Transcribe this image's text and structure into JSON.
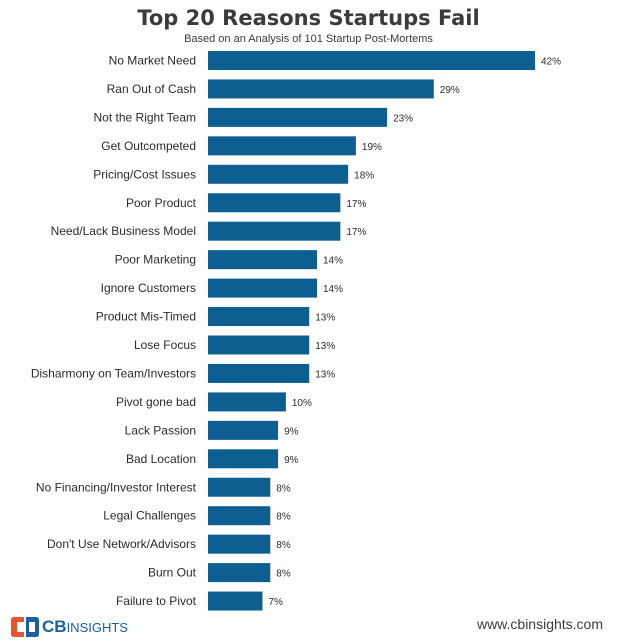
{
  "chart_data": {
    "type": "bar",
    "orientation": "horizontal",
    "title": "Top 20 Reasons Startups Fail",
    "subtitle": "Based on an Analysis of 101 Startup Post-Mortems",
    "categories": [
      "No Market Need",
      "Ran Out of Cash",
      "Not the Right Team",
      "Get Outcompeted",
      "Pricing/Cost Issues",
      "Poor Product",
      "Need/Lack Business Model",
      "Poor Marketing",
      "Ignore Customers",
      "Product Mis-Timed",
      "Lose Focus",
      "Disharmony on Team/Investors",
      "Pivot gone bad",
      "Lack Passion",
      "Bad Location",
      "No Financing/Investor Interest",
      "Legal Challenges",
      "Don't Use Network/Advisors",
      "Burn Out",
      "Failure to Pivot"
    ],
    "values": [
      42,
      29,
      23,
      19,
      18,
      17,
      17,
      14,
      14,
      13,
      13,
      13,
      10,
      9,
      9,
      8,
      8,
      8,
      8,
      7
    ],
    "value_labels": [
      "42%",
      "29%",
      "23%",
      "19%",
      "18%",
      "17%",
      "17%",
      "14%",
      "14%",
      "13%",
      "13%",
      "13%",
      "10%",
      "9%",
      "9%",
      "8%",
      "8%",
      "8%",
      "8%",
      "7%"
    ],
    "xlabel": "",
    "ylabel": "",
    "xlim": [
      0,
      42
    ],
    "grid": false,
    "legend": "none",
    "bar_color": "#0d5e91"
  },
  "branding": {
    "logo_bold": "CB",
    "logo_rest": "INSIGHTS",
    "website": "www.cbinsights.com"
  },
  "colors": {
    "bar": "#0d5e91",
    "logo": "#1b5fa0",
    "text": "#3b3b3b"
  }
}
